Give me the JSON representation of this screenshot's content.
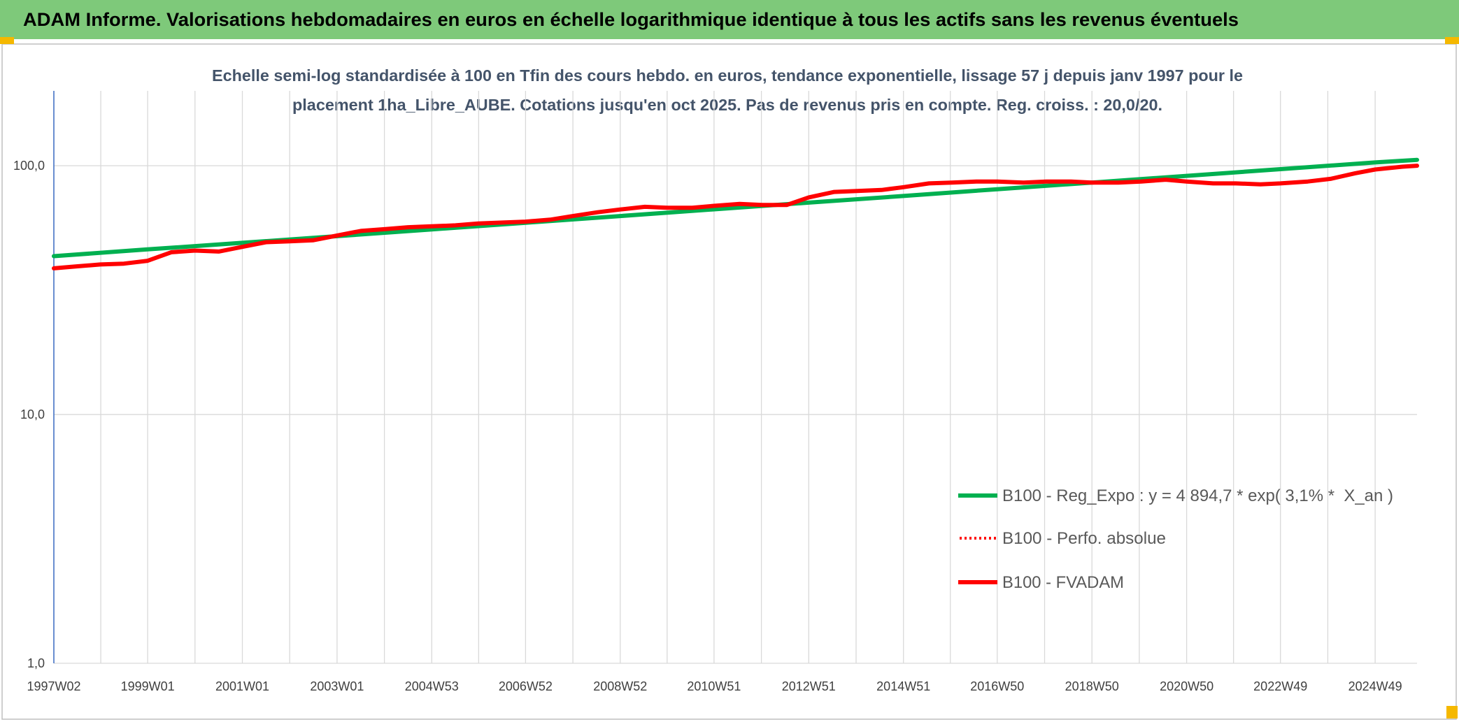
{
  "header": {
    "title": "ADAM Informe. Valorisations hebdomadaires en euros en échelle logarithmique identique à tous les actifs sans les revenus éventuels",
    "background_color": "#7EC97A"
  },
  "chart_data": {
    "type": "line",
    "title_lines": [
      "Echelle semi-log standardisée à 100 en Tfin des cours hebdo. en euros, tendance exponentielle, lissage 57 j depuis janv 1997 pour le",
      "placement 1ha_Libre_AUBE. Cotations jusqu'en oct 2025. Pas de revenus pris en compte. Reg. croiss. : 20,0/20."
    ],
    "xlabel": "",
    "ylabel": "",
    "yscale": "log",
    "ylim": [
      1,
      200
    ],
    "x_range": [
      "1997W02",
      "2025W43"
    ],
    "yticks": [
      {
        "value": 100,
        "label": "100,0"
      },
      {
        "value": 10,
        "label": "10,0"
      },
      {
        "value": 1,
        "label": "1,0"
      }
    ],
    "xticks": [
      "1997W02",
      "1999W01",
      "2001W01",
      "2003W01",
      "2004W53",
      "2006W52",
      "2008W52",
      "2010W51",
      "2012W51",
      "2014W51",
      "2016W50",
      "2018W50",
      "2020W50",
      "2022W49",
      "2024W49"
    ],
    "grid": {
      "horizontal": true,
      "vertical": true
    },
    "axis_color": "#4472C4",
    "legend": "bottom-right",
    "series": [
      {
        "name": "B100 - Reg_Expo : y = 4 894,7 * exp( 3,1% *  X_an )",
        "color": "#00B050",
        "style": "solid",
        "points": [
          {
            "x": "1997W02",
            "y": 43.3
          },
          {
            "x": "1999W01",
            "y": 46.1
          },
          {
            "x": "2001W01",
            "y": 49.0
          },
          {
            "x": "2003W01",
            "y": 52.1
          },
          {
            "x": "2004W53",
            "y": 55.5
          },
          {
            "x": "2006W52",
            "y": 59.0
          },
          {
            "x": "2008W52",
            "y": 62.8
          },
          {
            "x": "2010W51",
            "y": 66.8
          },
          {
            "x": "2012W51",
            "y": 71.1
          },
          {
            "x": "2014W51",
            "y": 75.6
          },
          {
            "x": "2016W50",
            "y": 80.5
          },
          {
            "x": "2018W50",
            "y": 85.6
          },
          {
            "x": "2020W50",
            "y": 91.1
          },
          {
            "x": "2022W49",
            "y": 96.9
          },
          {
            "x": "2024W49",
            "y": 103.1
          },
          {
            "x": "2025W43",
            "y": 105.6
          }
        ]
      },
      {
        "name": "B100 - Perfo. absolue",
        "color": "#FF0000",
        "style": "dotted",
        "points": []
      },
      {
        "name": "B100 - FVADAM",
        "color": "#FF0000",
        "style": "solid",
        "points": [
          {
            "x": "1997W02",
            "y": 38.7
          },
          {
            "x": "1997W27",
            "y": 39.4
          },
          {
            "x": "1998W01",
            "y": 40.1
          },
          {
            "x": "1998W27",
            "y": 40.4
          },
          {
            "x": "1999W01",
            "y": 41.5
          },
          {
            "x": "1999W27",
            "y": 44.9
          },
          {
            "x": "2000W01",
            "y": 45.6
          },
          {
            "x": "2000W27",
            "y": 45.2
          },
          {
            "x": "2001W01",
            "y": 47.2
          },
          {
            "x": "2001W27",
            "y": 49.3
          },
          {
            "x": "2002W01",
            "y": 49.7
          },
          {
            "x": "2002W27",
            "y": 50.2
          },
          {
            "x": "2003W01",
            "y": 52.4
          },
          {
            "x": "2003W27",
            "y": 54.7
          },
          {
            "x": "2004W01",
            "y": 55.6
          },
          {
            "x": "2004W27",
            "y": 56.6
          },
          {
            "x": "2004W53",
            "y": 57.1
          },
          {
            "x": "2005W27",
            "y": 57.6
          },
          {
            "x": "2005W52",
            "y": 58.6
          },
          {
            "x": "2006W27",
            "y": 59.1
          },
          {
            "x": "2006W52",
            "y": 59.6
          },
          {
            "x": "2007W27",
            "y": 60.7
          },
          {
            "x": "2007W52",
            "y": 62.8
          },
          {
            "x": "2008W27",
            "y": 65.0
          },
          {
            "x": "2008W52",
            "y": 66.7
          },
          {
            "x": "2009W27",
            "y": 68.4
          },
          {
            "x": "2009W52",
            "y": 67.8
          },
          {
            "x": "2010W27",
            "y": 67.8
          },
          {
            "x": "2010W51",
            "y": 69.0
          },
          {
            "x": "2011W27",
            "y": 70.2
          },
          {
            "x": "2011W52",
            "y": 69.6
          },
          {
            "x": "2012W27",
            "y": 69.6
          },
          {
            "x": "2012W51",
            "y": 74.6
          },
          {
            "x": "2013W27",
            "y": 78.5
          },
          {
            "x": "2013W52",
            "y": 79.2
          },
          {
            "x": "2014W27",
            "y": 79.9
          },
          {
            "x": "2014W51",
            "y": 82.0
          },
          {
            "x": "2015W27",
            "y": 84.9
          },
          {
            "x": "2015W52",
            "y": 85.6
          },
          {
            "x": "2016W27",
            "y": 86.4
          },
          {
            "x": "2016W50",
            "y": 86.4
          },
          {
            "x": "2017W27",
            "y": 85.6
          },
          {
            "x": "2017W52",
            "y": 86.4
          },
          {
            "x": "2018W27",
            "y": 86.4
          },
          {
            "x": "2018W50",
            "y": 85.6
          },
          {
            "x": "2019W27",
            "y": 85.6
          },
          {
            "x": "2019W52",
            "y": 86.4
          },
          {
            "x": "2020W27",
            "y": 87.9
          },
          {
            "x": "2020W50",
            "y": 86.4
          },
          {
            "x": "2021W27",
            "y": 84.9
          },
          {
            "x": "2021W52",
            "y": 84.9
          },
          {
            "x": "2022W27",
            "y": 84.2
          },
          {
            "x": "2022W49",
            "y": 84.9
          },
          {
            "x": "2023W27",
            "y": 86.4
          },
          {
            "x": "2023W52",
            "y": 88.6
          },
          {
            "x": "2024W27",
            "y": 93.3
          },
          {
            "x": "2024W49",
            "y": 96.6
          },
          {
            "x": "2025W27",
            "y": 99.1
          },
          {
            "x": "2025W43",
            "y": 100.0
          }
        ]
      }
    ]
  }
}
